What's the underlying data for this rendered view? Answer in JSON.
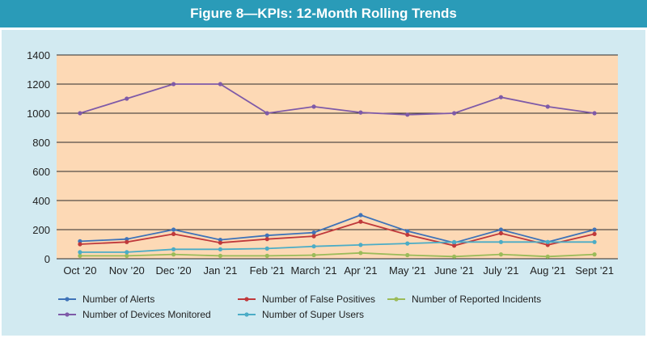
{
  "chart_data": {
    "type": "line",
    "title": "Figure 8—KPIs: 12-Month Rolling Trends",
    "xlabel": "",
    "ylabel": "",
    "ylim": [
      0,
      1400
    ],
    "yticks": [
      0,
      200,
      400,
      600,
      800,
      1000,
      1200,
      1400
    ],
    "grid": true,
    "categories": [
      "Oct ’20",
      "Nov ’20",
      "Dec ’20",
      "Jan ’21",
      "Feb ’21",
      "March ’21",
      "Apr ’21",
      "May ’21",
      "June ’21",
      "July ’21",
      "Aug ’21",
      "Sept ’21"
    ],
    "series": [
      {
        "name": "Number of Alerts",
        "color": "#3f73b8",
        "values": [
          120,
          135,
          200,
          130,
          160,
          180,
          300,
          190,
          110,
          200,
          115,
          200
        ]
      },
      {
        "name": "Number of False Positives",
        "color": "#c0393b",
        "values": [
          100,
          115,
          170,
          110,
          135,
          155,
          255,
          165,
          90,
          175,
          95,
          170
        ]
      },
      {
        "name": "Number of Reported Incidents",
        "color": "#9bbb59",
        "values": [
          20,
          20,
          30,
          20,
          20,
          25,
          40,
          25,
          15,
          30,
          15,
          30
        ]
      },
      {
        "name": "Number of Devices Monitored",
        "color": "#7e5aa8",
        "values": [
          1000,
          1100,
          1200,
          1200,
          1000,
          1045,
          1005,
          990,
          1000,
          1110,
          1045,
          1000
        ]
      },
      {
        "name": "Number of Super Users",
        "color": "#4bacc6",
        "values": [
          45,
          45,
          65,
          65,
          70,
          85,
          95,
          105,
          115,
          115,
          115,
          115
        ]
      }
    ],
    "legend_position": "bottom"
  }
}
